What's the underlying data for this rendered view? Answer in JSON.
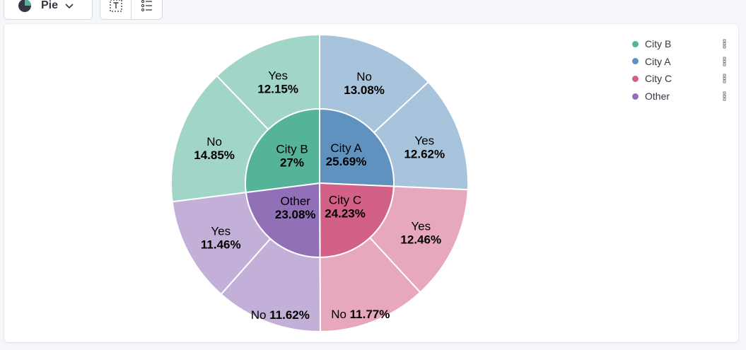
{
  "toolbar": {
    "chart_type_label": "Pie"
  },
  "colors": {
    "City B": "#54b399",
    "City A": "#6092c0",
    "City C": "#d36086",
    "Other": "#9170b8"
  },
  "legend": {
    "items": [
      {
        "label": "City B",
        "color": "#54b399"
      },
      {
        "label": "City A",
        "color": "#6092c0"
      },
      {
        "label": "City C",
        "color": "#d36086"
      },
      {
        "label": "Other",
        "color": "#9170b8"
      }
    ]
  },
  "chart_data": {
    "type": "pie",
    "inner_ring": [
      {
        "label": "City A",
        "value_label": "25.69%",
        "value": 25.69
      },
      {
        "label": "City C",
        "value_label": "24.23%",
        "value": 24.23
      },
      {
        "label": "Other",
        "value_label": "23.08%",
        "value": 23.08
      },
      {
        "label": "City B",
        "value_label": "27%",
        "value": 27.0
      }
    ],
    "outer_ring": [
      {
        "parent": "City A",
        "label": "No",
        "value_label": "13.08%",
        "value": 13.08
      },
      {
        "parent": "City A",
        "label": "Yes",
        "value_label": "12.62%",
        "value": 12.62
      },
      {
        "parent": "City C",
        "label": "Yes",
        "value_label": "12.46%",
        "value": 12.46
      },
      {
        "parent": "City C",
        "label": "No",
        "value_label": "11.77%",
        "value": 11.77
      },
      {
        "parent": "Other",
        "label": "No",
        "value_label": "11.62%",
        "value": 11.62
      },
      {
        "parent": "Other",
        "label": "Yes",
        "value_label": "11.46%",
        "value": 11.46
      },
      {
        "parent": "City B",
        "label": "No",
        "value_label": "14.85%",
        "value": 14.85
      },
      {
        "parent": "City B",
        "label": "Yes",
        "value_label": "12.15%",
        "value": 12.15
      }
    ]
  }
}
